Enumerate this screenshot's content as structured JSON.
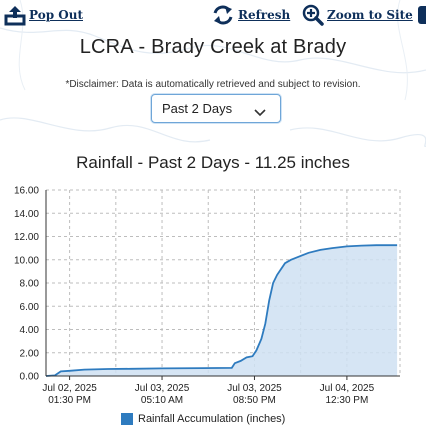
{
  "toolbar": {
    "popout_label": "Pop Out",
    "refresh_label": "Refresh",
    "zoom_label": "Zoom to Site"
  },
  "header": {
    "title": "LCRA - Brady Creek at Brady",
    "disclaimer": "*Disclaimer: Data is automatically retrieved and subject to revision."
  },
  "range_select": {
    "selected": "Past 2 Days"
  },
  "colors": {
    "series_line": "#2e7bbf",
    "series_fill": "#cfe1f2",
    "grid": "#bdbdbd",
    "toolbar_text": "#0e2f5a"
  },
  "chart_data": {
    "type": "area",
    "title": "Rainfall - Past 2 Days - 11.25 inches",
    "xlabel": "",
    "ylabel": "",
    "ylim": [
      0,
      16
    ],
    "yticks": [
      "0.00",
      "2.00",
      "4.00",
      "6.00",
      "8.00",
      "10.00",
      "12.00",
      "14.00",
      "16.00"
    ],
    "xrange": [
      "Jul 02, 2025 09:30 AM",
      "Jul 04, 2025 09:30 PM"
    ],
    "xticks": [
      {
        "date": "Jul 02, 2025",
        "time": "01:30 PM"
      },
      {
        "date": "Jul 03, 2025",
        "time": "05:10 AM"
      },
      {
        "date": "Jul 03, 2025",
        "time": "08:50 PM"
      },
      {
        "date": "Jul 04, 2025",
        "time": "12:30 PM"
      }
    ],
    "grid": true,
    "legend_position": "bottom",
    "series": [
      {
        "name": "Rainfall Accumulation (inches)",
        "points": [
          [
            "Jul 02, 2025 09:30 AM",
            0.0
          ],
          [
            "Jul 02, 2025 11:00 AM",
            0.05
          ],
          [
            "Jul 02, 2025 12:00 PM",
            0.4
          ],
          [
            "Jul 02, 2025 01:30 PM",
            0.45
          ],
          [
            "Jul 02, 2025 04:00 PM",
            0.55
          ],
          [
            "Jul 02, 2025 08:00 PM",
            0.6
          ],
          [
            "Jul 03, 2025 12:00 AM",
            0.62
          ],
          [
            "Jul 03, 2025 05:10 AM",
            0.65
          ],
          [
            "Jul 03, 2025 12:00 PM",
            0.68
          ],
          [
            "Jul 03, 2025 05:00 PM",
            0.7
          ],
          [
            "Jul 03, 2025 05:30 PM",
            1.1
          ],
          [
            "Jul 03, 2025 06:30 PM",
            1.3
          ],
          [
            "Jul 03, 2025 07:30 PM",
            1.6
          ],
          [
            "Jul 03, 2025 08:30 PM",
            1.7
          ],
          [
            "Jul 03, 2025 09:10 PM",
            2.2
          ],
          [
            "Jul 03, 2025 10:00 PM",
            3.2
          ],
          [
            "Jul 03, 2025 10:40 PM",
            4.5
          ],
          [
            "Jul 03, 2025 11:20 PM",
            6.5
          ],
          [
            "Jul 04, 2025 12:00 AM",
            8.0
          ],
          [
            "Jul 04, 2025 12:40 AM",
            8.7
          ],
          [
            "Jul 04, 2025 01:20 AM",
            9.2
          ],
          [
            "Jul 04, 2025 02:00 AM",
            9.7
          ],
          [
            "Jul 04, 2025 03:00 AM",
            10.0
          ],
          [
            "Jul 04, 2025 04:30 AM",
            10.3
          ],
          [
            "Jul 04, 2025 06:00 AM",
            10.6
          ],
          [
            "Jul 04, 2025 08:00 AM",
            10.85
          ],
          [
            "Jul 04, 2025 10:00 AM",
            11.0
          ],
          [
            "Jul 04, 2025 12:30 PM",
            11.15
          ],
          [
            "Jul 04, 2025 03:00 PM",
            11.22
          ],
          [
            "Jul 04, 2025 05:30 PM",
            11.25
          ],
          [
            "Jul 04, 2025 09:00 PM",
            11.25
          ]
        ]
      }
    ]
  }
}
